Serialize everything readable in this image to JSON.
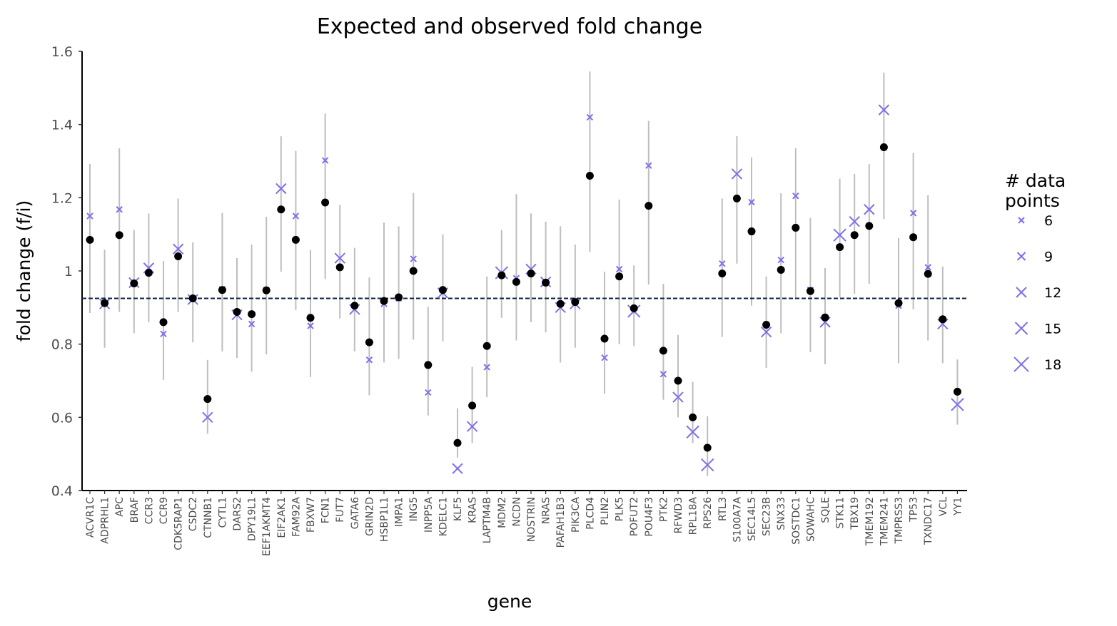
{
  "chart_data": {
    "type": "scatter",
    "title": "Expected and observed fold change",
    "xlabel": "gene",
    "ylabel": "fold change (f/i)",
    "ylim": [
      0.4,
      1.6
    ],
    "yticks": [
      0.4,
      0.6,
      0.8,
      1,
      1.2,
      1.4,
      1.6
    ],
    "ytick_labels": [
      "0.4",
      "0.6",
      "0.8",
      "1",
      "1.2",
      "1.4",
      "1.6"
    ],
    "reference_line": 0.925,
    "grid": false,
    "legend": {
      "title_lines": [
        "# data",
        "points"
      ],
      "placement": "right",
      "entries": [
        {
          "label": "6",
          "size": 6
        },
        {
          "label": "9",
          "size": 9
        },
        {
          "label": "12",
          "size": 12
        },
        {
          "label": "15",
          "size": 15
        },
        {
          "label": "18",
          "size": 18
        }
      ]
    },
    "colors": {
      "expected": "#7b72e9",
      "observed": "#000000",
      "errorbar": "#bebebe",
      "refline": "#0b2244"
    },
    "genes": [
      "ACVR1C",
      "ADPRHL1",
      "APC",
      "BRAF",
      "CCR3",
      "CCR9",
      "CDK5RAP1",
      "CSDC2",
      "CTNNB1",
      "CYTL1",
      "DARS2",
      "DPY19L1",
      "EEF1AKMT4",
      "EIF2AK1",
      "FAM92A",
      "FBXW7",
      "FCN1",
      "FUT7",
      "GATA6",
      "GRIN2D",
      "HSBP1L1",
      "IMPA1",
      "ING5",
      "INPP5A",
      "KDELC1",
      "KLF5",
      "KRAS",
      "LAPTM4B",
      "MDM2",
      "NCDN",
      "NOSTRIN",
      "NRAS",
      "PAFAH1B3",
      "PIK3CA",
      "PLCD4",
      "PLIN2",
      "PLK5",
      "POFUT2",
      "POU4F3",
      "PTK2",
      "RFWD3",
      "RPL18A",
      "RPS26",
      "RTL3",
      "S100A7A",
      "SEC14L5",
      "SEC23B",
      "SNX33",
      "SOSTDC1",
      "SOWAHC",
      "SQLE",
      "STK11",
      "TBX19",
      "TMEM192",
      "TMEM241",
      "TMPRSS3",
      "TP53",
      "TXNDC17",
      "VCL",
      "YY1"
    ],
    "observed": [
      1.085,
      0.912,
      1.098,
      0.966,
      0.995,
      0.86,
      1.04,
      0.925,
      0.65,
      0.948,
      0.888,
      0.882,
      0.947,
      1.168,
      1.085,
      0.872,
      1.187,
      1.01,
      0.905,
      0.805,
      0.918,
      0.928,
      1.0,
      0.743,
      0.948,
      0.53,
      0.632,
      0.795,
      0.988,
      0.97,
      0.993,
      0.968,
      0.91,
      0.915,
      1.26,
      0.815,
      0.985,
      0.898,
      1.178,
      0.782,
      0.7,
      0.6,
      0.517,
      0.993,
      1.198,
      1.108,
      0.853,
      1.003,
      1.118,
      0.945,
      0.873,
      1.065,
      1.098,
      1.123,
      1.338,
      0.912,
      1.092,
      0.992,
      0.868,
      0.67
    ],
    "expected": [
      1.15,
      0.91,
      1.168,
      0.968,
      1.008,
      0.828,
      1.06,
      0.922,
      0.6,
      0.95,
      0.88,
      0.855,
      0.948,
      1.225,
      1.15,
      0.85,
      1.302,
      1.035,
      0.895,
      0.757,
      0.91,
      0.925,
      1.033,
      0.668,
      0.94,
      0.46,
      0.575,
      0.737,
      0.995,
      0.98,
      1.005,
      0.97,
      0.9,
      0.91,
      1.42,
      0.763,
      1.005,
      0.89,
      1.288,
      0.718,
      0.655,
      0.56,
      0.47,
      1.02,
      1.265,
      1.188,
      0.833,
      1.03,
      1.205,
      0.948,
      0.86,
      1.098,
      1.135,
      1.168,
      1.44,
      0.905,
      1.158,
      1.01,
      0.855,
      0.635
    ],
    "n_points": [
      6,
      12,
      6,
      12,
      12,
      6,
      12,
      12,
      12,
      6,
      12,
      6,
      6,
      12,
      6,
      6,
      6,
      12,
      12,
      6,
      6,
      6,
      6,
      6,
      12,
      12,
      12,
      6,
      15,
      6,
      12,
      12,
      12,
      12,
      6,
      6,
      6,
      15,
      6,
      6,
      12,
      15,
      15,
      6,
      12,
      6,
      12,
      6,
      6,
      6,
      12,
      15,
      12,
      12,
      12,
      6,
      6,
      6,
      12,
      15
    ],
    "err_low": [
      0.885,
      0.79,
      0.888,
      0.83,
      0.86,
      0.702,
      0.888,
      0.805,
      0.555,
      0.78,
      0.762,
      0.725,
      0.772,
      0.998,
      0.893,
      0.71,
      0.978,
      0.87,
      0.78,
      0.66,
      0.75,
      0.76,
      0.812,
      0.605,
      0.808,
      0.49,
      0.53,
      0.655,
      0.872,
      0.81,
      0.86,
      0.832,
      0.75,
      0.79,
      1.052,
      0.665,
      0.8,
      0.795,
      0.963,
      0.648,
      0.6,
      0.53,
      0.44,
      0.82,
      1.02,
      0.905,
      0.735,
      0.83,
      0.925,
      0.778,
      0.745,
      0.928,
      0.938,
      0.965,
      1.142,
      0.748,
      0.895,
      0.81,
      0.748,
      0.58
    ],
    "err_high": [
      1.292,
      1.058,
      1.335,
      1.112,
      1.157,
      1.027,
      1.198,
      1.078,
      0.757,
      1.158,
      1.035,
      1.072,
      1.148,
      1.368,
      1.328,
      1.057,
      1.43,
      1.18,
      1.063,
      0.982,
      1.132,
      1.122,
      1.213,
      0.902,
      1.1,
      0.625,
      0.738,
      0.985,
      1.112,
      1.21,
      1.157,
      1.135,
      1.122,
      1.072,
      1.545,
      0.998,
      1.195,
      1.015,
      1.41,
      0.965,
      0.825,
      0.697,
      0.603,
      1.198,
      1.368,
      1.31,
      0.985,
      1.212,
      1.335,
      1.145,
      1.008,
      1.252,
      1.265,
      1.292,
      1.542,
      1.09,
      1.322,
      1.207,
      1.012,
      0.758
    ]
  }
}
